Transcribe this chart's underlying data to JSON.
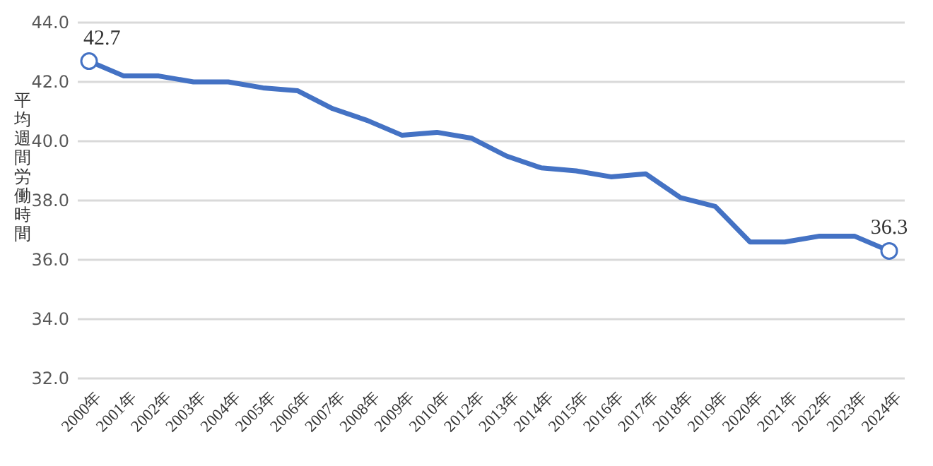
{
  "chart_data": {
    "type": "line",
    "ylabel": "平均週間労働時間",
    "categories": [
      "2000年",
      "2001年",
      "2002年",
      "2003年",
      "2004年",
      "2005年",
      "2006年",
      "2007年",
      "2008年",
      "2009年",
      "2010年",
      "2012年",
      "2013年",
      "2014年",
      "2015年",
      "2016年",
      "2017年",
      "2018年",
      "2019年",
      "2020年",
      "2021年",
      "2022年",
      "2023年",
      "2024年"
    ],
    "series": [
      {
        "color": "#4472c4",
        "values": [
          42.7,
          42.2,
          42.2,
          42.0,
          42.0,
          41.8,
          41.7,
          41.1,
          40.7,
          40.2,
          40.3,
          40.1,
          39.5,
          39.1,
          39.0,
          38.8,
          38.9,
          38.1,
          37.8,
          36.6,
          36.6,
          36.8,
          36.8,
          36.3
        ],
        "value_labels": [
          "42.7",
          null,
          null,
          null,
          null,
          null,
          null,
          null,
          null,
          null,
          null,
          null,
          null,
          null,
          null,
          null,
          null,
          null,
          null,
          null,
          null,
          null,
          null,
          "36.3"
        ]
      }
    ],
    "ylim": [
      32,
      44
    ],
    "yticks": [
      {
        "value": 32,
        "label": "32.0"
      },
      {
        "value": 34,
        "label": "34.0"
      },
      {
        "value": 36,
        "label": "36.0"
      },
      {
        "value": 38,
        "label": "38.0"
      },
      {
        "value": 40,
        "label": "40.0"
      },
      {
        "value": 42,
        "label": "42.0"
      },
      {
        "value": 44,
        "label": "44.0"
      }
    ],
    "grid": "y",
    "line_style": "solid"
  }
}
